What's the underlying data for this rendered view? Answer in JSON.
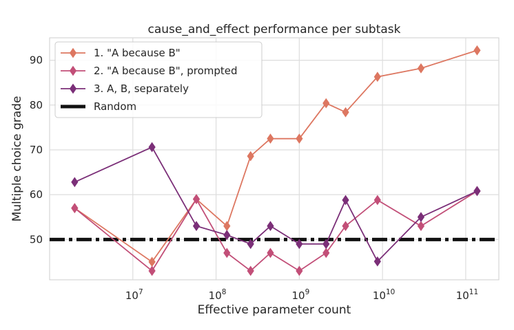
{
  "chart_data": {
    "type": "line",
    "title": "cause_and_effect performance per subtask",
    "xlabel": "Effective parameter count",
    "ylabel": "Multiple choice grade",
    "x_scale": "log",
    "xlim": [
      1000000,
      250000000000
    ],
    "ylim": [
      41,
      95
    ],
    "x_ticks": [
      {
        "value": 10000000,
        "base": "10",
        "exp": "7"
      },
      {
        "value": 100000000,
        "base": "10",
        "exp": "8"
      },
      {
        "value": 1000000000,
        "base": "10",
        "exp": "9"
      },
      {
        "value": 10000000000,
        "base": "10",
        "exp": "10"
      },
      {
        "value": 100000000000,
        "base": "10",
        "exp": "11"
      }
    ],
    "y_ticks": [
      50,
      60,
      70,
      80,
      90
    ],
    "grid": true,
    "legend_position": "top-left",
    "x": [
      2000000,
      17000000,
      58000000,
      135000000,
      260000000,
      450000000,
      1000000000,
      2100000000,
      3600000000,
      8700000000,
      29000000000,
      137000000000
    ],
    "series": [
      {
        "name": "1. \"A because B\"",
        "color": "#dd7761",
        "marker": "diamond",
        "values": [
          57,
          45,
          59,
          53,
          68.6,
          72.5,
          72.5,
          80.4,
          78.4,
          86.3,
          88.2,
          92.2
        ]
      },
      {
        "name": "2. \"A because B\", prompted",
        "color": "#c24f78",
        "marker": "diamond",
        "values": [
          57,
          43,
          59,
          47,
          43,
          47,
          43,
          47,
          53,
          58.8,
          53,
          60.8
        ]
      },
      {
        "name": "3. A, B, separately",
        "color": "#7b2f78",
        "marker": "diamond",
        "values": [
          62.8,
          70.6,
          53,
          51,
          49,
          53,
          49,
          49,
          58.8,
          45.1,
          55,
          60.8
        ]
      },
      {
        "name": "Random",
        "color": "#111111",
        "style": "dashdot",
        "constant": 50
      }
    ]
  }
}
